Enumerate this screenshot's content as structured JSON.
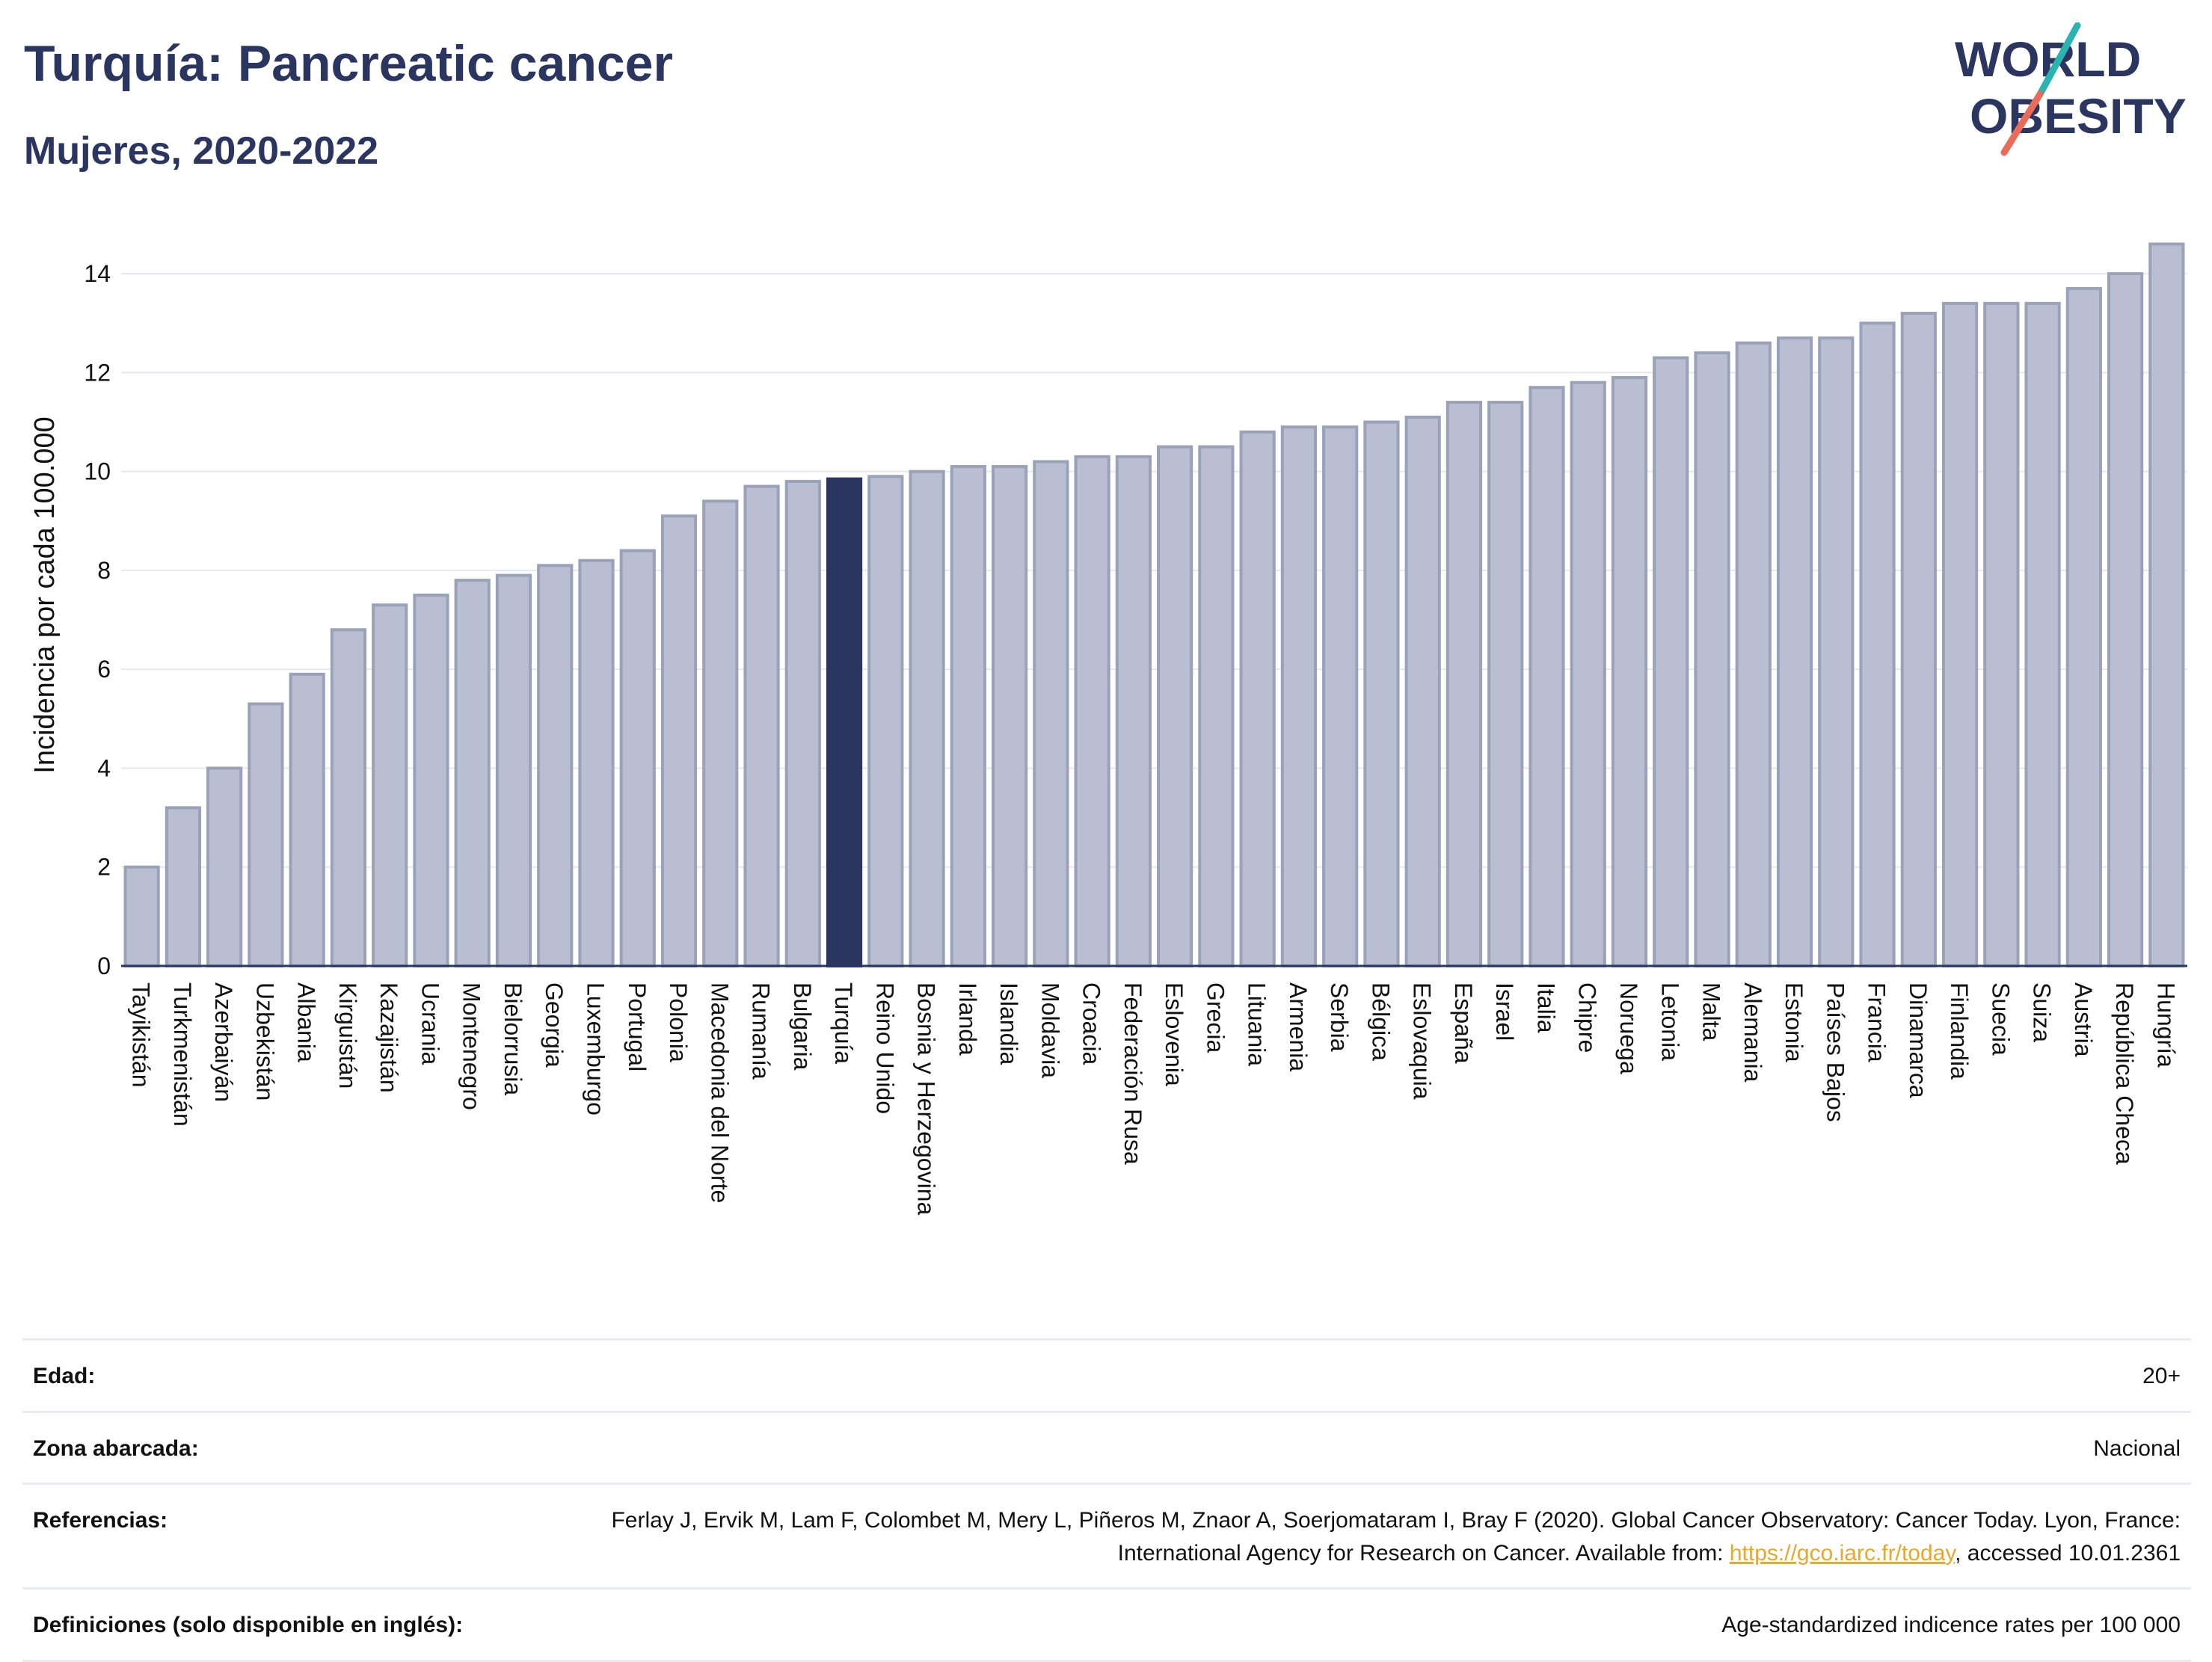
{
  "header": {
    "title": "Turquía: Pancreatic cancer",
    "subtitle": "Mujeres, 2020-2022"
  },
  "logo": {
    "line1": "WORLD",
    "line2": "OBESITY",
    "colors": {
      "text": "#2a3560",
      "slash_teal": "#2bb3b1",
      "slash_coral": "#ea6b5a"
    }
  },
  "colors": {
    "bar_fill": "#b9bfd0",
    "bar_stroke": "#9aa2ba",
    "highlight": "#2a3560",
    "grid": "#e6e8ef",
    "axis_line": "#2a3560",
    "text": "#111111"
  },
  "chart_data": {
    "type": "bar",
    "title": "Turquía: Pancreatic cancer",
    "subtitle": "Mujeres, 2020-2022",
    "xlabel": "",
    "ylabel": "Incidencia por cada 100.000",
    "ylim": [
      0,
      15
    ],
    "yticks": [
      0,
      2,
      4,
      6,
      8,
      10,
      12,
      14
    ],
    "grid": true,
    "highlight": "Turquía",
    "categories": [
      "Tayikistán",
      "Turkmenistán",
      "Azerbaiyán",
      "Uzbekistán",
      "Albania",
      "Kirguistán",
      "Kazajistán",
      "Ucrania",
      "Montenegro",
      "Bielorrusia",
      "Georgia",
      "Luxemburgo",
      "Portugal",
      "Polonia",
      "Macedonia del Norte",
      "Rumanía",
      "Bulgaria",
      "Turquía",
      "Reino Unido",
      "Bosnia y Herzegovina",
      "Irlanda",
      "Islandia",
      "Moldavia",
      "Croacia",
      "Federación Rusa",
      "Eslovenia",
      "Grecia",
      "Lituania",
      "Armenia",
      "Serbia",
      "Bélgica",
      "Eslovaquia",
      "España",
      "Israel",
      "Italia",
      "Chipre",
      "Noruega",
      "Letonia",
      "Malta",
      "Alemania",
      "Estonia",
      "Países Bajos",
      "Francia",
      "Dinamarca",
      "Finlandia",
      "Suecia",
      "Suiza",
      "Austria",
      "República Checa",
      "Hungría"
    ],
    "values": [
      2.0,
      3.2,
      4.0,
      5.3,
      5.9,
      6.8,
      7.3,
      7.5,
      7.8,
      7.9,
      8.1,
      8.2,
      8.4,
      9.1,
      9.4,
      9.7,
      9.8,
      9.85,
      9.9,
      10.0,
      10.1,
      10.1,
      10.2,
      10.3,
      10.3,
      10.5,
      10.5,
      10.8,
      10.9,
      10.9,
      11.0,
      11.1,
      11.4,
      11.4,
      11.7,
      11.8,
      11.9,
      12.3,
      12.4,
      12.6,
      12.7,
      12.7,
      13.0,
      13.2,
      13.4,
      13.4,
      13.4,
      13.7,
      14.0,
      14.6
    ]
  },
  "info": {
    "age": {
      "label": "Edad:",
      "value": "20+"
    },
    "coverage": {
      "label": "Zona abarcada:",
      "value": "Nacional"
    },
    "references": {
      "label": "Referencias:",
      "text_before": "Ferlay J, Ervik M, Lam F, Colombet M, Mery L, Piñeros M, Znaor A, Soerjomataram I, Bray F (2020). Global Cancer Observatory: Cancer Today. Lyon, France: International Agency for Research on Cancer. Available from: ",
      "link": "https://gco.iarc.fr/today",
      "text_after": ", accessed 10.01.2361"
    },
    "definitions": {
      "label": "Definiciones (solo disponible en inglés):",
      "value": "Age-standardized indicence rates per 100 000"
    }
  }
}
